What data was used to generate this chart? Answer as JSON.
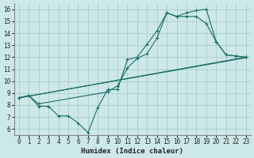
{
  "xlabel": "Humidex (Indice chaleur)",
  "xlim": [
    -0.5,
    23.5
  ],
  "ylim": [
    5.5,
    16.5
  ],
  "xticks": [
    0,
    1,
    2,
    3,
    4,
    5,
    6,
    7,
    8,
    9,
    10,
    11,
    12,
    13,
    14,
    15,
    16,
    17,
    18,
    19,
    20,
    21,
    22,
    23
  ],
  "yticks": [
    6,
    7,
    8,
    9,
    10,
    11,
    12,
    13,
    14,
    15,
    16
  ],
  "bg_color": "#cde8e8",
  "grid_color": "#aacccc",
  "line_color": "#1a6e6a",
  "line1_x": [
    0,
    1,
    2,
    3,
    4,
    5,
    6,
    7,
    8,
    9,
    10,
    11,
    12,
    13,
    14,
    15,
    16,
    17,
    18,
    19,
    20,
    21,
    22,
    23
  ],
  "line1_y": [
    8.6,
    8.8,
    7.9,
    7.9,
    7.1,
    7.1,
    6.5,
    5.7,
    7.8,
    9.3,
    9.3,
    11.8,
    12.0,
    13.1,
    14.2,
    15.7,
    15.4,
    15.4,
    15.4,
    14.8,
    13.3,
    12.2,
    12.1,
    12.0
  ],
  "line2_x": [
    0,
    1,
    2,
    9,
    10,
    11,
    12,
    13,
    14,
    15,
    16,
    17,
    18,
    19,
    20,
    21,
    22,
    23
  ],
  "line2_y": [
    8.6,
    8.8,
    8.1,
    9.1,
    9.6,
    11.1,
    11.9,
    12.3,
    13.6,
    15.7,
    15.4,
    15.7,
    15.9,
    16.0,
    13.3,
    12.2,
    12.1,
    12.0
  ],
  "trend1_x": [
    0,
    23
  ],
  "trend1_y": [
    8.6,
    12.0
  ],
  "trend2_x": [
    0,
    23
  ],
  "trend2_y": [
    8.6,
    11.95
  ]
}
